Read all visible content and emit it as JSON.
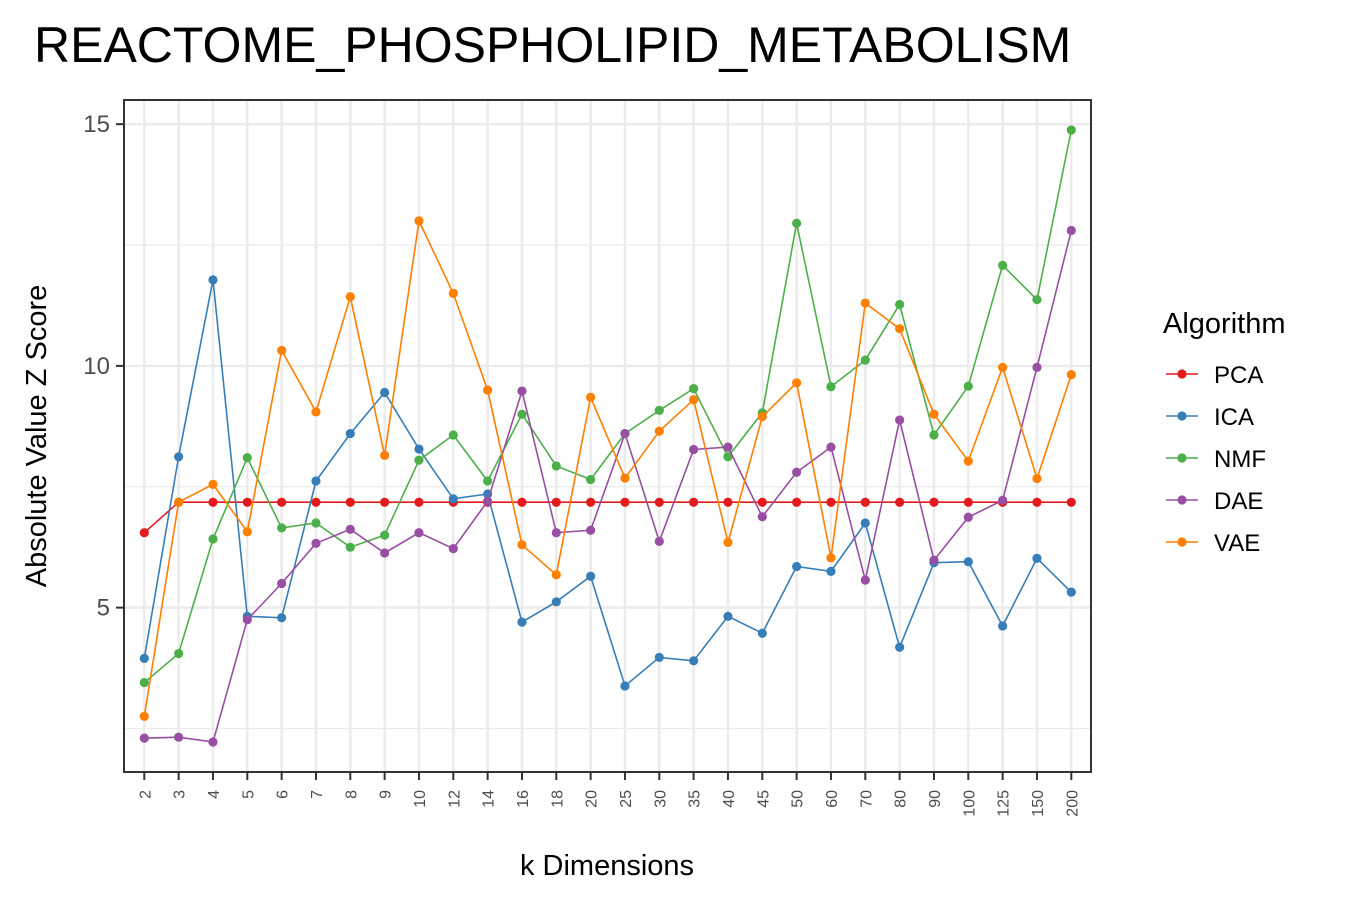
{
  "chart_data": {
    "type": "line",
    "title": "REACTOME_PHOSPHOLIPID_METABOLISM",
    "xlabel": "k Dimensions",
    "ylabel": "Absolute Value Z Score",
    "categories": [
      "2",
      "3",
      "4",
      "5",
      "6",
      "7",
      "8",
      "9",
      "10",
      "12",
      "14",
      "16",
      "18",
      "20",
      "25",
      "30",
      "35",
      "40",
      "45",
      "50",
      "60",
      "70",
      "80",
      "90",
      "100",
      "125",
      "150",
      "200"
    ],
    "ylim": [
      1.6,
      15.5
    ],
    "yticks": [
      5,
      10,
      15
    ],
    "yticks_labels": [
      "5",
      "10",
      "15"
    ],
    "grid": true,
    "legend": {
      "title": "Algorithm",
      "position": "right"
    },
    "series": [
      {
        "name": "PCA",
        "color": "#e41a1c",
        "values": [
          6.55,
          7.18,
          7.18,
          7.18,
          7.18,
          7.18,
          7.18,
          7.18,
          7.18,
          7.18,
          7.18,
          7.18,
          7.18,
          7.18,
          7.18,
          7.18,
          7.18,
          7.18,
          7.18,
          7.18,
          7.18,
          7.18,
          7.18,
          7.18,
          7.18,
          7.18,
          7.18,
          7.18
        ]
      },
      {
        "name": "ICA",
        "color": "#377eb8",
        "values": [
          3.95,
          8.12,
          11.78,
          4.82,
          4.79,
          7.62,
          8.6,
          9.45,
          8.28,
          7.25,
          7.35,
          4.7,
          5.12,
          5.65,
          3.38,
          3.97,
          3.9,
          4.82,
          4.47,
          5.85,
          5.75,
          6.75,
          4.18,
          5.93,
          5.95,
          4.62,
          6.02,
          5.32
        ]
      },
      {
        "name": "NMF",
        "color": "#4daf4a",
        "values": [
          3.45,
          4.05,
          6.42,
          8.1,
          6.65,
          6.75,
          6.25,
          6.5,
          8.05,
          8.57,
          7.62,
          9.0,
          7.93,
          7.65,
          8.6,
          9.08,
          9.53,
          8.12,
          9.03,
          12.95,
          9.57,
          10.12,
          11.27,
          8.57,
          9.58,
          12.08,
          11.37,
          14.88
        ]
      },
      {
        "name": "DAE",
        "color": "#984ea3",
        "values": [
          2.3,
          2.32,
          2.22,
          4.75,
          5.5,
          6.33,
          6.62,
          6.13,
          6.55,
          6.22,
          7.2,
          9.48,
          6.55,
          6.6,
          8.6,
          6.37,
          8.27,
          8.32,
          6.88,
          7.8,
          8.32,
          5.57,
          8.88,
          5.98,
          6.87,
          7.22,
          9.97,
          12.8
        ]
      },
      {
        "name": "VAE",
        "color": "#ff7f00",
        "values": [
          2.75,
          7.18,
          7.55,
          6.57,
          10.32,
          9.05,
          11.43,
          8.15,
          13.0,
          11.5,
          9.5,
          6.3,
          5.68,
          9.35,
          7.68,
          8.65,
          9.3,
          6.35,
          8.95,
          9.65,
          6.03,
          11.3,
          10.77,
          9.0,
          8.03,
          9.97,
          7.67,
          9.82
        ]
      }
    ]
  }
}
